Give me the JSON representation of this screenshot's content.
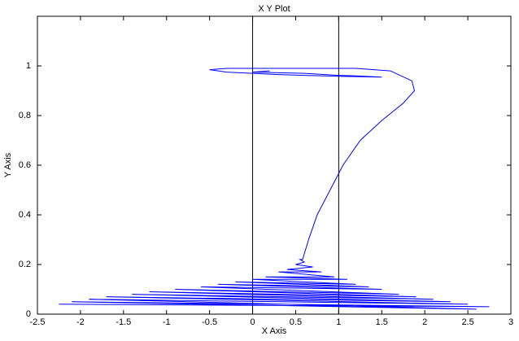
{
  "chart_data": {
    "type": "line",
    "title": "X Y Plot",
    "x_label": "X Axis",
    "y_label": "Y Axis",
    "x": [
      -2.25,
      2.75,
      -2.1,
      2.6,
      -1.9,
      2.5,
      -1.7,
      2.3,
      -1.4,
      2.1,
      -1.2,
      1.9,
      -0.9,
      1.7,
      -0.6,
      1.5,
      -0.4,
      1.35,
      -0.2,
      1.2,
      0.0,
      1.1,
      0.15,
      0.95,
      0.3,
      0.8,
      0.4,
      0.7,
      0.5,
      0.6,
      0.55,
      0.58,
      0.65,
      0.75,
      0.9,
      1.05,
      1.25,
      1.5,
      1.75,
      1.88,
      1.85,
      1.6,
      1.2,
      0.8,
      0.3,
      -0.3,
      -0.5,
      -0.3,
      0.3,
      1.0,
      1.5,
      1.2,
      1.0,
      0.6,
      0.0,
      0.2
    ],
    "series": [
      {
        "color": "#0000ff",
        "values": [
          0.04,
          0.03,
          0.05,
          0.02,
          0.06,
          0.04,
          0.07,
          0.05,
          0.08,
          0.06,
          0.09,
          0.07,
          0.1,
          0.08,
          0.11,
          0.1,
          0.12,
          0.11,
          0.13,
          0.12,
          0.14,
          0.14,
          0.15,
          0.15,
          0.17,
          0.17,
          0.18,
          0.19,
          0.2,
          0.21,
          0.22,
          0.22,
          0.3,
          0.4,
          0.5,
          0.6,
          0.7,
          0.78,
          0.85,
          0.9,
          0.94,
          0.98,
          0.99,
          0.99,
          0.99,
          0.99,
          0.985,
          0.975,
          0.965,
          0.958,
          0.955,
          0.96,
          0.962,
          0.97,
          0.975,
          0.98
        ]
      }
    ],
    "vlines": [
      0,
      1
    ],
    "vline_color": "#000000",
    "xlim": [
      -2.5,
      3
    ],
    "xticks": [
      -2.5,
      -2,
      -1.5,
      -1,
      -0.5,
      0,
      0.5,
      1,
      1.5,
      2,
      2.5,
      3
    ],
    "ylim": [
      0,
      1.2
    ],
    "yticks": [
      0,
      0.2,
      0.4,
      0.6,
      0.8,
      1
    ]
  }
}
